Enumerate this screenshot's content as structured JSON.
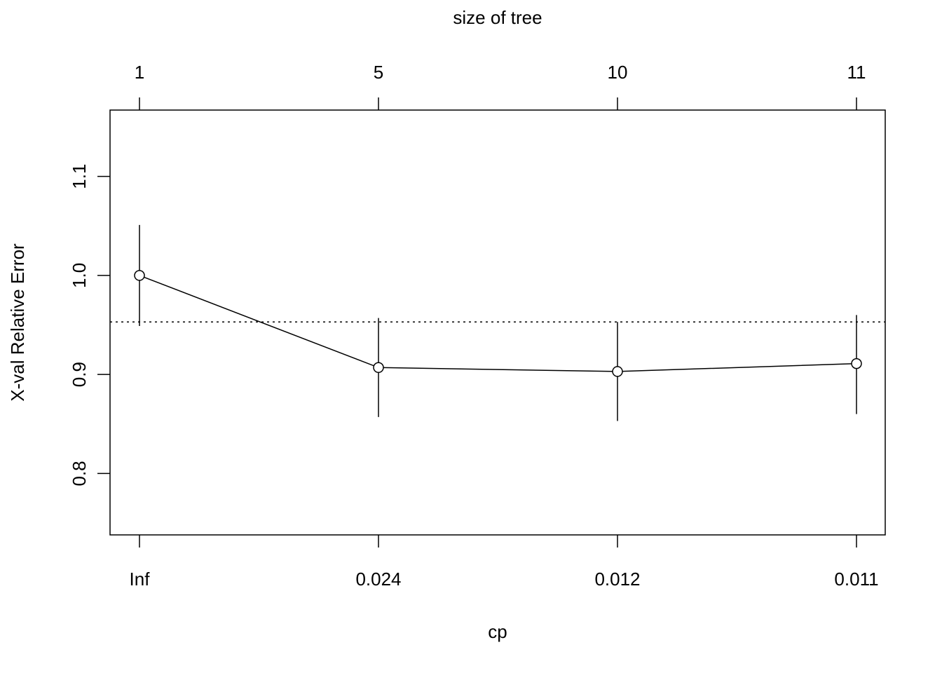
{
  "chart_data": {
    "type": "line",
    "title": "",
    "top_axis_label": "size of tree",
    "xlabel": "cp",
    "ylabel": "X-val Relative Error",
    "x_categories": [
      "Inf",
      "0.024",
      "0.012",
      "0.011"
    ],
    "top_tick_labels": [
      "1",
      "5",
      "10",
      "11"
    ],
    "y_ticks": [
      0.8,
      0.9,
      1.0,
      1.1
    ],
    "y_tick_labels": [
      "0.8",
      "0.9",
      "1.0",
      "1.1"
    ],
    "ylim": [
      0.738,
      1.167
    ],
    "values": [
      1.0,
      0.907,
      0.903,
      0.911
    ],
    "error_upper": [
      1.051,
      0.957,
      0.953,
      0.96
    ],
    "error_lower": [
      0.949,
      0.857,
      0.853,
      0.86
    ],
    "reference_line": 0.953,
    "grid": false,
    "colors": {
      "line": "#000000"
    }
  }
}
